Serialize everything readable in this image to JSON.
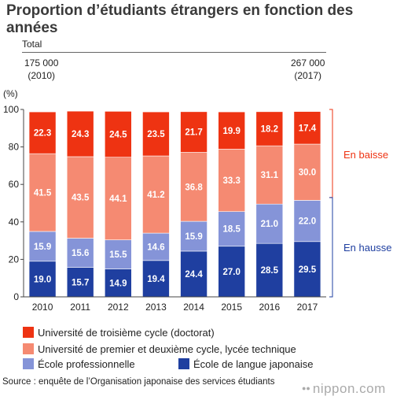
{
  "title": "Proportion d’étudiants étrangers en fonction des années",
  "total": {
    "label": "Total",
    "start_value": "175 000",
    "start_year": "(2010)",
    "end_value": "267 000",
    "end_year": "(2017)"
  },
  "chart_data": {
    "type": "bar",
    "stacked": true,
    "categories": [
      "2010",
      "2011",
      "2012",
      "2013",
      "2014",
      "2015",
      "2016",
      "2017"
    ],
    "series": [
      {
        "name": "École de langue japonaise",
        "color": "#1f3fa0",
        "values": [
          19.0,
          15.7,
          14.9,
          19.4,
          24.4,
          27.0,
          28.5,
          29.5
        ]
      },
      {
        "name": "École professionnelle",
        "color": "#8594d8",
        "values": [
          15.9,
          15.6,
          15.5,
          14.6,
          15.9,
          18.5,
          21.0,
          22.0
        ]
      },
      {
        "name": "Université de premier et deuxième cycle, lycée technique",
        "color": "#f58a72",
        "values": [
          41.5,
          43.5,
          44.1,
          41.2,
          36.8,
          33.3,
          31.1,
          30.0
        ]
      },
      {
        "name": "Université de troisième cycle (doctorat)",
        "color": "#ee3312",
        "values": [
          22.3,
          24.3,
          24.5,
          23.5,
          21.7,
          19.9,
          18.2,
          17.4
        ]
      }
    ],
    "ylabel": "(%)",
    "ylim": [
      0,
      100
    ],
    "yticks": [
      "0",
      "20",
      "40",
      "60",
      "80",
      "100"
    ],
    "grid": false,
    "annotations": [
      {
        "text": "En baisse",
        "color": "#ee3312"
      },
      {
        "text": "En hausse",
        "color": "#1f3fa0"
      }
    ]
  },
  "legend": [
    {
      "label": "Université de troisième cycle (doctorat)",
      "color": "#ee3312"
    },
    {
      "label": "Université de premier et deuxième cycle, lycée technique",
      "color": "#f58a72"
    },
    {
      "label": "École professionnelle",
      "color": "#8594d8"
    },
    {
      "label": "École de langue japonaise",
      "color": "#1f3fa0"
    }
  ],
  "source": "Source : enquête de l’Organisation japonaise des services étudiants",
  "brand": "nippon.com",
  "brand_icon": "dots-logo-icon"
}
